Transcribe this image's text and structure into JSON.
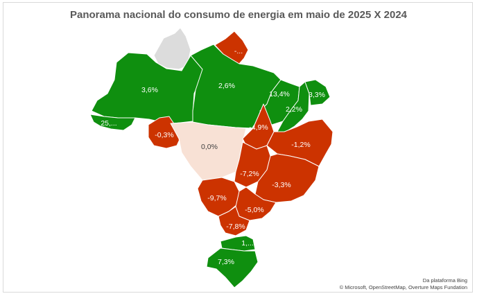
{
  "title": "Panorama nacional do consumo de energia em maio de 2025 X 2024",
  "colors": {
    "positive": "#0f8f0f",
    "negative": "#cc3300",
    "neutral": "#f8e1d5",
    "no_data": "#dcdcdc",
    "border": "#ffffff"
  },
  "regions": [
    {
      "id": "RR",
      "value_label": "",
      "category": "no_data"
    },
    {
      "id": "AP",
      "value_label": "-...",
      "category": "negative"
    },
    {
      "id": "AM",
      "value_label": "3,6%",
      "category": "positive"
    },
    {
      "id": "PA",
      "value_label": "2,6%",
      "category": "positive"
    },
    {
      "id": "AC",
      "value_label": "25,...",
      "category": "positive"
    },
    {
      "id": "RO",
      "value_label": "-0,3%",
      "category": "negative"
    },
    {
      "id": "MT",
      "value_label": "0,0%",
      "category": "neutral"
    },
    {
      "id": "MA",
      "value_label": "13,4%",
      "category": "positive"
    },
    {
      "id": "PI",
      "value_label": "2,2%",
      "category": "positive"
    },
    {
      "id": "CE",
      "value_label": "3,3%",
      "category": "positive"
    },
    {
      "id": "TO",
      "value_label": "-4,9%",
      "category": "negative"
    },
    {
      "id": "BA",
      "value_label": "-1,2%",
      "category": "negative"
    },
    {
      "id": "GO",
      "value_label": "-7,2%",
      "category": "negative"
    },
    {
      "id": "MG",
      "value_label": "-3,3%",
      "category": "negative"
    },
    {
      "id": "MS",
      "value_label": "-9,7%",
      "category": "negative"
    },
    {
      "id": "SP",
      "value_label": "-5,0%",
      "category": "negative"
    },
    {
      "id": "PR",
      "value_label": "-7,8%",
      "category": "negative"
    },
    {
      "id": "SC",
      "value_label": "1,...",
      "category": "positive"
    },
    {
      "id": "RS",
      "value_label": "7,3%",
      "category": "positive"
    }
  ],
  "credits": {
    "line1": "Da plataforma Bing",
    "line2": "© Microsoft, OpenStreetMap, Overture Maps Fundation"
  }
}
